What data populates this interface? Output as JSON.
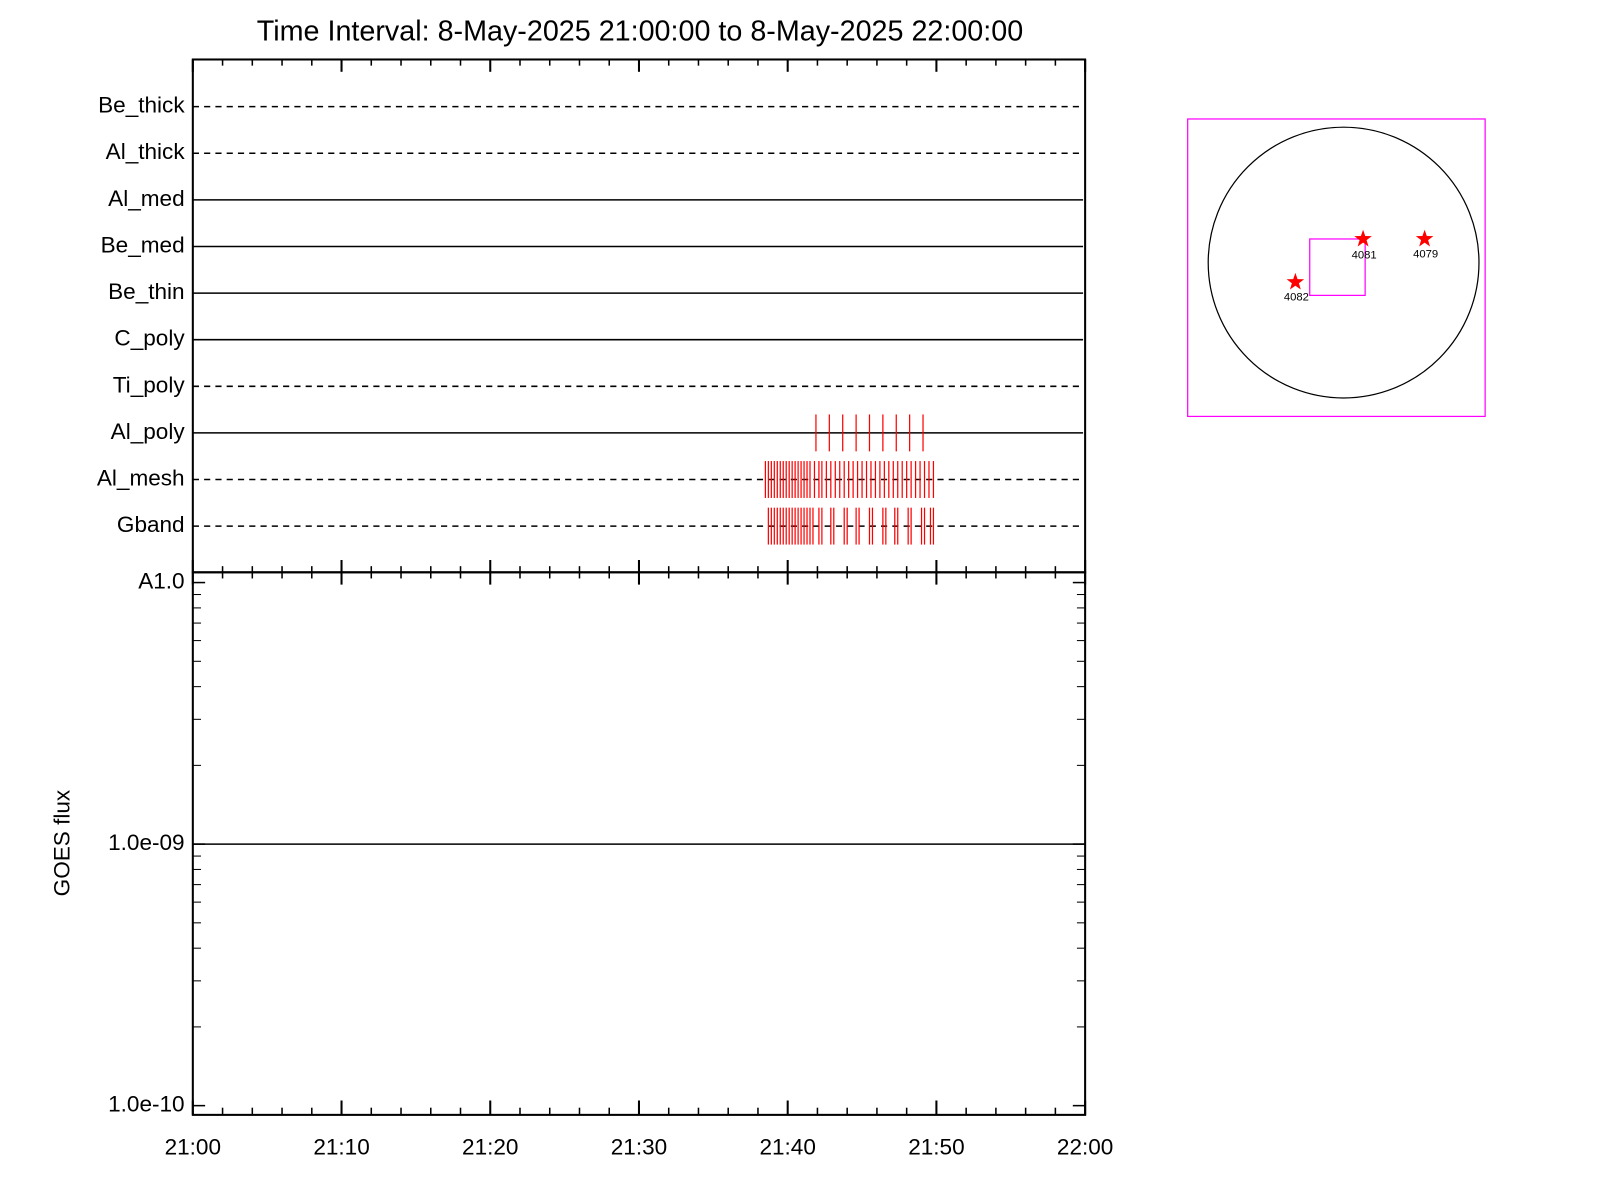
{
  "chart_data": [
    {
      "type": "timeline",
      "title": "Time Interval:  8-May-2025 21:00:00 to  8-May-2025 22:00:00",
      "categories": [
        "Be_thick",
        "Al_thick",
        "Al_med",
        "Be_med",
        "Be_thin",
        "C_poly",
        "Ti_poly",
        "Al_poly",
        "Al_mesh",
        "Gband"
      ],
      "line_styles": [
        "dashed",
        "dashed",
        "solid",
        "solid",
        "solid",
        "solid",
        "dashed",
        "solid",
        "dashed",
        "dashed"
      ],
      "color": "#ff0000",
      "xlim": [
        0,
        60
      ],
      "events": [
        [],
        [],
        [],
        [],
        [],
        [],
        [],
        [
          41.9,
          42.8,
          43.7,
          44.6,
          45.5,
          46.4,
          47.3,
          48.2,
          49.1
        ],
        [
          38.5,
          38.7,
          38.9,
          39.1,
          39.3,
          39.5,
          39.7,
          39.9,
          40.1,
          40.3,
          40.5,
          40.7,
          40.9,
          41.1,
          41.3,
          41.5,
          41.8,
          42.1,
          42.3,
          42.6,
          42.9,
          43.2,
          43.5,
          43.8,
          44.1,
          44.4,
          44.7,
          45.0,
          45.3,
          45.6,
          45.9,
          46.2,
          46.5,
          46.8,
          47.1,
          47.4,
          47.7,
          48.0,
          48.3,
          48.6,
          48.9,
          49.2,
          49.5,
          49.8
        ],
        [
          38.7,
          38.9,
          39.1,
          39.3,
          39.5,
          39.7,
          39.9,
          40.1,
          40.3,
          40.5,
          40.7,
          40.9,
          41.1,
          41.3,
          41.5,
          41.7,
          42.1,
          42.3,
          42.9,
          43.1,
          43.8,
          44.0,
          44.6,
          44.8,
          45.5,
          45.7,
          46.4,
          46.6,
          47.2,
          47.4,
          48.1,
          48.3,
          49.0,
          49.2,
          49.6,
          49.8
        ]
      ]
    },
    {
      "type": "line",
      "ylabel": "GOES flux",
      "x": [
        0,
        60
      ],
      "values": [
        1e-09,
        1e-09
      ],
      "color": "#000000",
      "xlim": [
        0,
        60
      ],
      "xticks": [
        {
          "value": 0,
          "label": "21:00"
        },
        {
          "value": 10,
          "label": "21:10"
        },
        {
          "value": 20,
          "label": "21:20"
        },
        {
          "value": 30,
          "label": "21:30"
        },
        {
          "value": 40,
          "label": "21:40"
        },
        {
          "value": 50,
          "label": "21:50"
        },
        {
          "value": 60,
          "label": "22:00"
        }
      ],
      "xminorticks": [
        2,
        4,
        6,
        8,
        12,
        14,
        16,
        18,
        22,
        24,
        26,
        28,
        32,
        34,
        36,
        38,
        42,
        44,
        46,
        48,
        52,
        54,
        56,
        58
      ],
      "log_y": true,
      "ylim": [
        1e-10,
        1e-08
      ],
      "yticks": [
        {
          "value": 1e-10,
          "label": "1.0e-10"
        },
        {
          "value": 1e-09,
          "label": "1.0e-09"
        },
        {
          "value": 1e-08,
          "label": "A1.0"
        }
      ],
      "yminorticks": [
        2e-10,
        3e-10,
        4e-10,
        5e-10,
        6e-10,
        7e-10,
        8e-10,
        9e-10,
        2e-09,
        3e-09,
        4e-09,
        5e-09,
        6e-09,
        7e-09,
        8e-09,
        9e-09
      ]
    }
  ],
  "inset": {
    "regions": [
      "4081",
      "4079",
      "4082"
    ]
  }
}
